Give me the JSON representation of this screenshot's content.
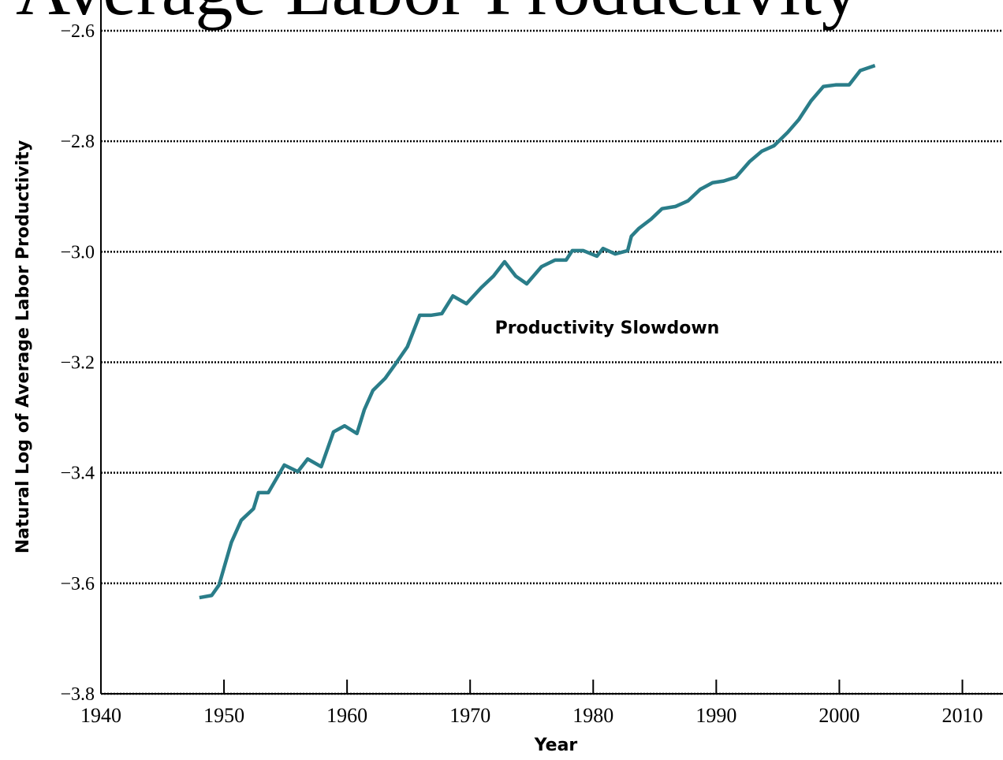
{
  "chart_data": {
    "type": "line",
    "title": "Average Labor Productivity",
    "xlabel": "Year",
    "ylabel": "Natural Log of Average Labor Productivity",
    "annotation": "Productivity Slowdown",
    "xlim": [
      1940,
      2013.3
    ],
    "ylim": [
      -3.8,
      -2.6
    ],
    "xticks": [
      1940,
      1950,
      1960,
      1970,
      1980,
      1990,
      2000,
      2010
    ],
    "yticks": [
      {
        "value": -3.8,
        "label": "−3.8"
      },
      {
        "value": -3.6,
        "label": "−3.6"
      },
      {
        "value": -3.4,
        "label": "−3.4"
      },
      {
        "value": -3.2,
        "label": "−3.2"
      },
      {
        "value": -3.0,
        "label": "−3.0"
      },
      {
        "value": -2.8,
        "label": "−2.8"
      },
      {
        "value": -2.6,
        "label": "−2.6"
      }
    ],
    "grid": true,
    "color": "#2a7d89",
    "x": [
      1948.0,
      1949.0,
      1949.6,
      1950.0,
      1950.6,
      1951.4,
      1952.4,
      1952.8,
      1953.6,
      1954.9,
      1956.0,
      1956.8,
      1957.9,
      1958.9,
      1959.8,
      1960.8,
      1961.4,
      1962.1,
      1963.1,
      1964.0,
      1964.9,
      1965.9,
      1966.8,
      1967.7,
      1968.6,
      1969.7,
      1970.9,
      1971.9,
      1972.8,
      1973.7,
      1974.6,
      1975.8,
      1976.9,
      1977.8,
      1978.3,
      1979.2,
      1980.3,
      1980.8,
      1981.8,
      1982.8,
      1983.1,
      1983.7,
      1984.7,
      1985.6,
      1986.7,
      1987.7,
      1988.7,
      1989.7,
      1990.6,
      1991.6,
      1992.7,
      1993.7,
      1994.7,
      1995.8,
      1996.7,
      1997.7,
      1998.7,
      1999.7,
      2000.8,
      2001.7,
      2002.9
    ],
    "values": [
      -3.626,
      -3.622,
      -3.603,
      -3.572,
      -3.526,
      -3.486,
      -3.465,
      -3.436,
      -3.436,
      -3.386,
      -3.398,
      -3.375,
      -3.389,
      -3.326,
      -3.315,
      -3.329,
      -3.286,
      -3.251,
      -3.229,
      -3.201,
      -3.172,
      -3.115,
      -3.115,
      -3.112,
      -3.08,
      -3.094,
      -3.065,
      -3.044,
      -3.018,
      -3.044,
      -3.058,
      -3.027,
      -3.015,
      -3.015,
      -2.998,
      -2.998,
      -3.008,
      -2.994,
      -3.004,
      -2.998,
      -2.972,
      -2.958,
      -2.941,
      -2.922,
      -2.918,
      -2.908,
      -2.887,
      -2.875,
      -2.872,
      -2.865,
      -2.837,
      -2.818,
      -2.808,
      -2.784,
      -2.761,
      -2.727,
      -2.701,
      -2.698,
      -2.698,
      -2.672,
      -2.663
    ]
  }
}
